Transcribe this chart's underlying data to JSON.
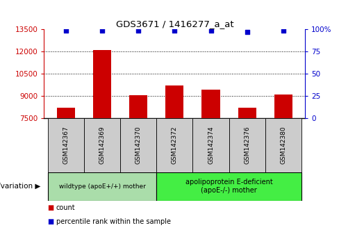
{
  "title": "GDS3671 / 1416277_a_at",
  "samples": [
    "GSM142367",
    "GSM142369",
    "GSM142370",
    "GSM142372",
    "GSM142374",
    "GSM142376",
    "GSM142380"
  ],
  "counts": [
    8200,
    12100,
    9050,
    9700,
    9450,
    8200,
    9100
  ],
  "percentile_ranks": [
    99,
    99,
    99,
    99,
    99,
    97,
    99
  ],
  "ylim_left": [
    7500,
    13500
  ],
  "ylim_right": [
    0,
    100
  ],
  "yticks_left": [
    7500,
    9000,
    10500,
    12000,
    13500
  ],
  "yticks_right": [
    0,
    25,
    50,
    75,
    100
  ],
  "bar_color": "#cc0000",
  "dot_color": "#0000cc",
  "group1_label": "wildtype (apoE+/+) mother",
  "group2_label": "apolipoprotein E-deficient\n(apoE-/-) mother",
  "group1_indices": [
    0,
    1,
    2
  ],
  "group2_indices": [
    3,
    4,
    5,
    6
  ],
  "group1_color": "#aaddaa",
  "group2_color": "#44ee44",
  "sample_box_color": "#cccccc",
  "legend_count_label": "count",
  "legend_percentile_label": "percentile rank within the sample",
  "xlabel_text": "genotype/variation",
  "grid_yticks": [
    9000,
    10500,
    12000
  ]
}
